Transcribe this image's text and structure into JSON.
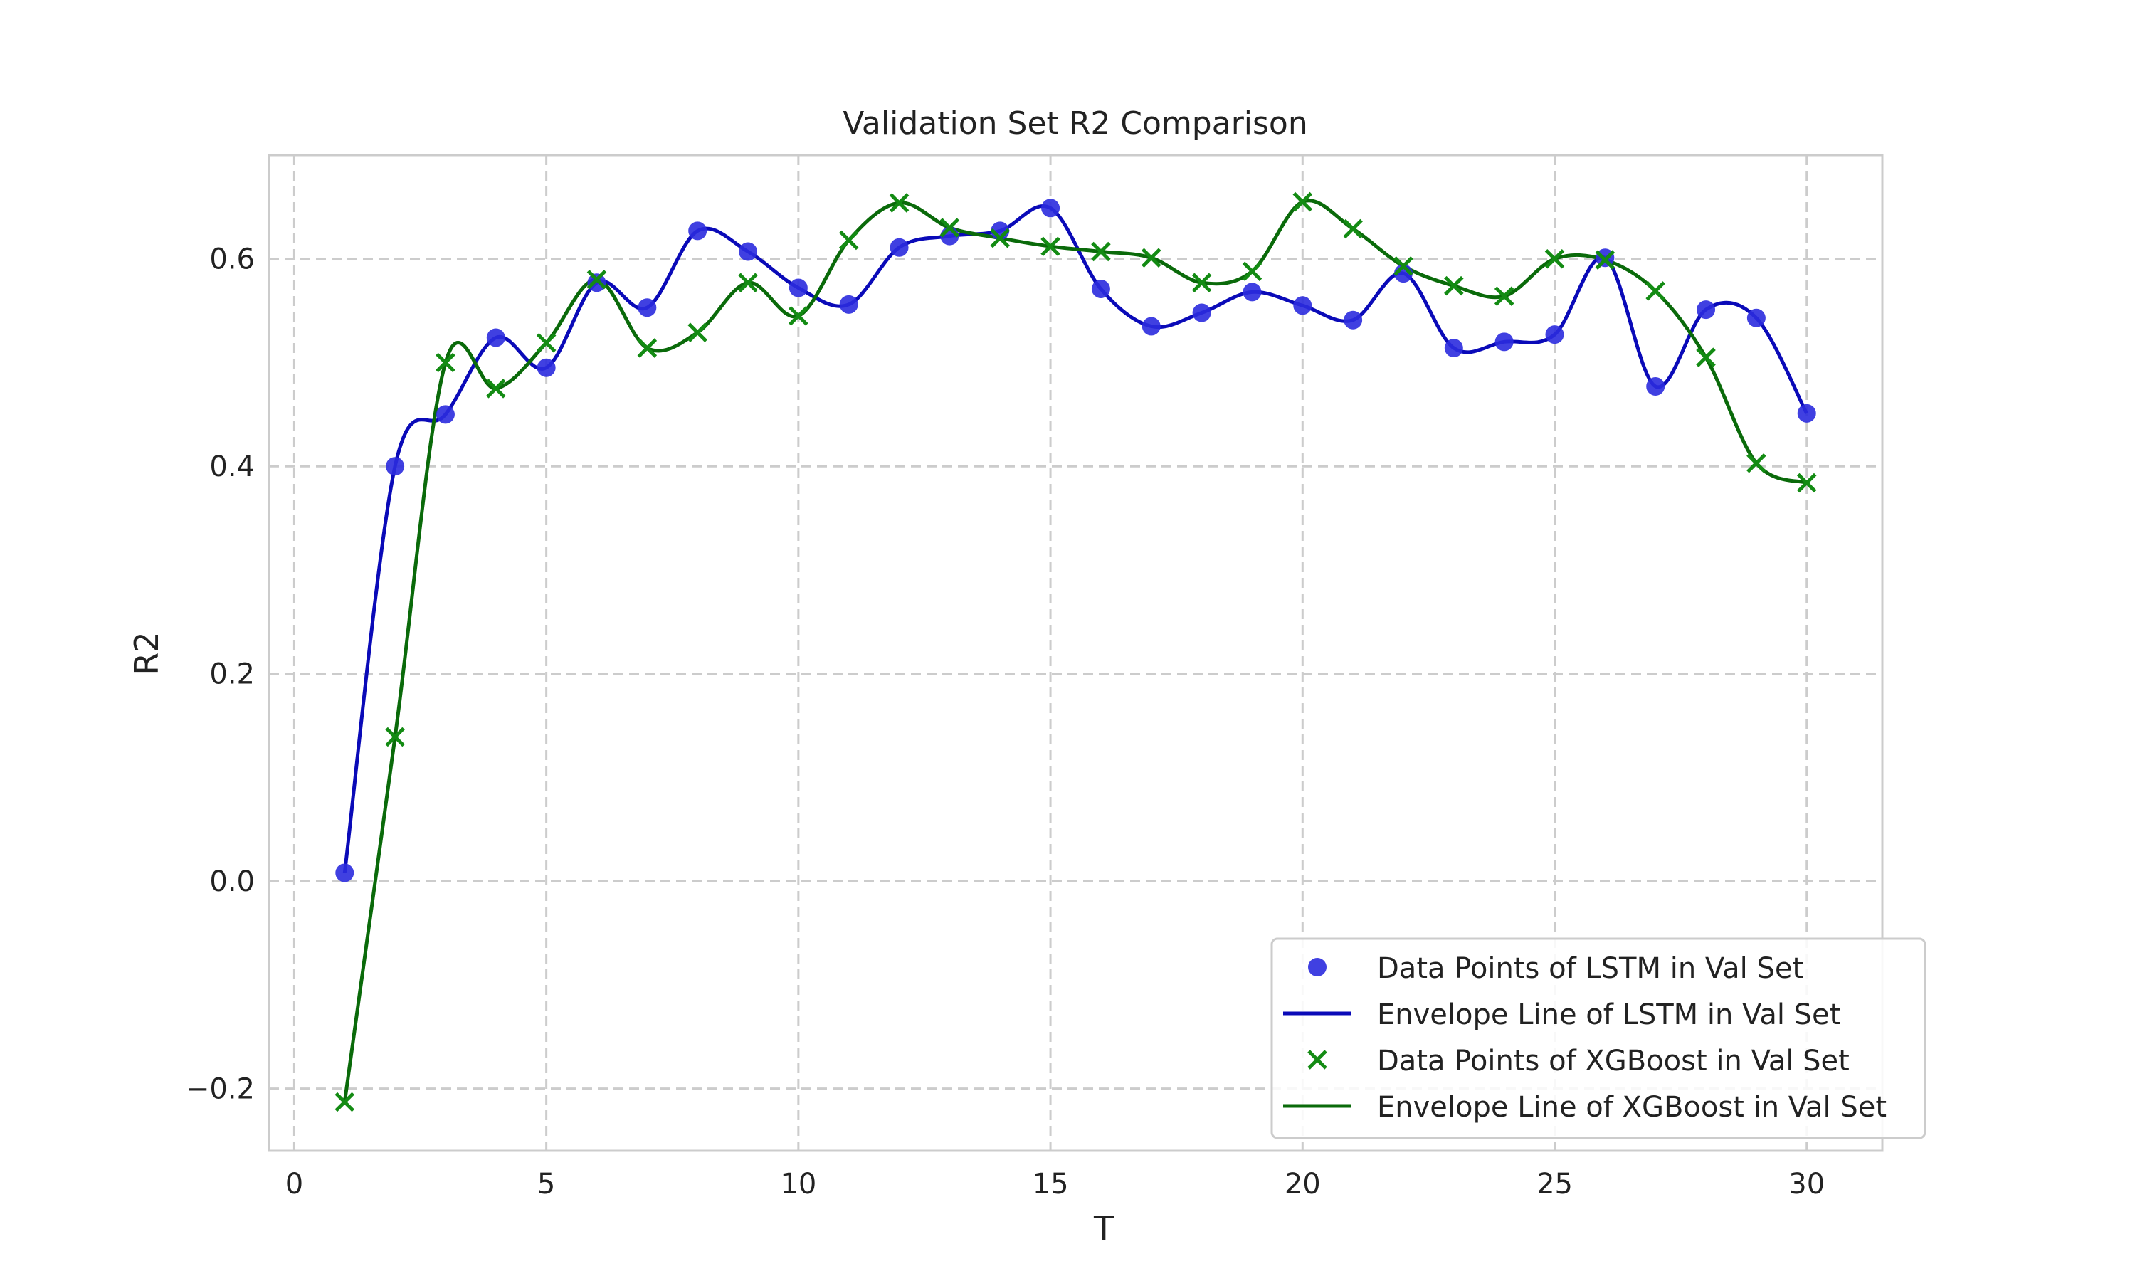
{
  "chart_data": {
    "type": "line",
    "title": "Validation Set R2 Comparison",
    "xlabel": "T",
    "ylabel": "R2",
    "xlim": [
      -0.5,
      31.5
    ],
    "ylim": [
      -0.26,
      0.7
    ],
    "xticks": [
      0,
      5,
      10,
      15,
      20,
      25,
      30
    ],
    "xtick_labels": [
      "0",
      "5",
      "10",
      "15",
      "20",
      "25",
      "30"
    ],
    "yticks": [
      -0.2,
      0.0,
      0.2,
      0.4,
      0.6
    ],
    "ytick_labels": [
      "−0.2",
      "0.0",
      "0.2",
      "0.4",
      "0.6"
    ],
    "grid": true,
    "legend_position": "lower-right",
    "x": [
      1,
      2,
      3,
      4,
      5,
      6,
      7,
      8,
      9,
      10,
      11,
      12,
      13,
      14,
      15,
      16,
      17,
      18,
      19,
      20,
      21,
      22,
      23,
      24,
      25,
      26,
      27,
      28,
      29,
      30
    ],
    "series": [
      {
        "name": "Data Points of LSTM in Val Set",
        "kind": "scatter",
        "marker": "circle",
        "color": "#2b2bde",
        "values": [
          0.008,
          0.4,
          0.45,
          0.524,
          0.495,
          0.577,
          0.553,
          0.627,
          0.607,
          0.572,
          0.556,
          0.611,
          0.622,
          0.627,
          0.649,
          0.571,
          0.535,
          0.548,
          0.568,
          0.555,
          0.541,
          0.586,
          0.514,
          0.52,
          0.527,
          0.601,
          0.477,
          0.551,
          0.543,
          0.451
        ]
      },
      {
        "name": "Envelope Line of LSTM in Val Set",
        "kind": "line",
        "color": "#0a0ab8",
        "values": [
          0.008,
          0.4,
          0.45,
          0.524,
          0.495,
          0.577,
          0.553,
          0.627,
          0.607,
          0.572,
          0.556,
          0.611,
          0.622,
          0.627,
          0.649,
          0.571,
          0.535,
          0.548,
          0.568,
          0.555,
          0.541,
          0.586,
          0.514,
          0.52,
          0.527,
          0.601,
          0.477,
          0.551,
          0.543,
          0.451
        ]
      },
      {
        "name": "Data Points of XGBoost in Val Set",
        "kind": "scatter",
        "marker": "x",
        "color": "#138b13",
        "values": [
          -0.213,
          0.139,
          0.5,
          0.475,
          0.519,
          0.58,
          0.514,
          0.529,
          0.577,
          0.545,
          0.618,
          0.654,
          0.63,
          0.62,
          0.612,
          0.607,
          0.601,
          0.577,
          0.588,
          0.655,
          0.629,
          0.593,
          0.574,
          0.564,
          0.6,
          0.599,
          0.569,
          0.505,
          0.403,
          0.384
        ]
      },
      {
        "name": "Envelope Line of XGBoost in Val Set",
        "kind": "line",
        "color": "#0a6a0a",
        "values": [
          -0.213,
          0.139,
          0.5,
          0.475,
          0.519,
          0.58,
          0.514,
          0.529,
          0.577,
          0.545,
          0.618,
          0.654,
          0.63,
          0.62,
          0.612,
          0.607,
          0.601,
          0.577,
          0.588,
          0.655,
          0.629,
          0.593,
          0.574,
          0.564,
          0.6,
          0.599,
          0.569,
          0.505,
          0.403,
          0.384
        ]
      }
    ]
  }
}
